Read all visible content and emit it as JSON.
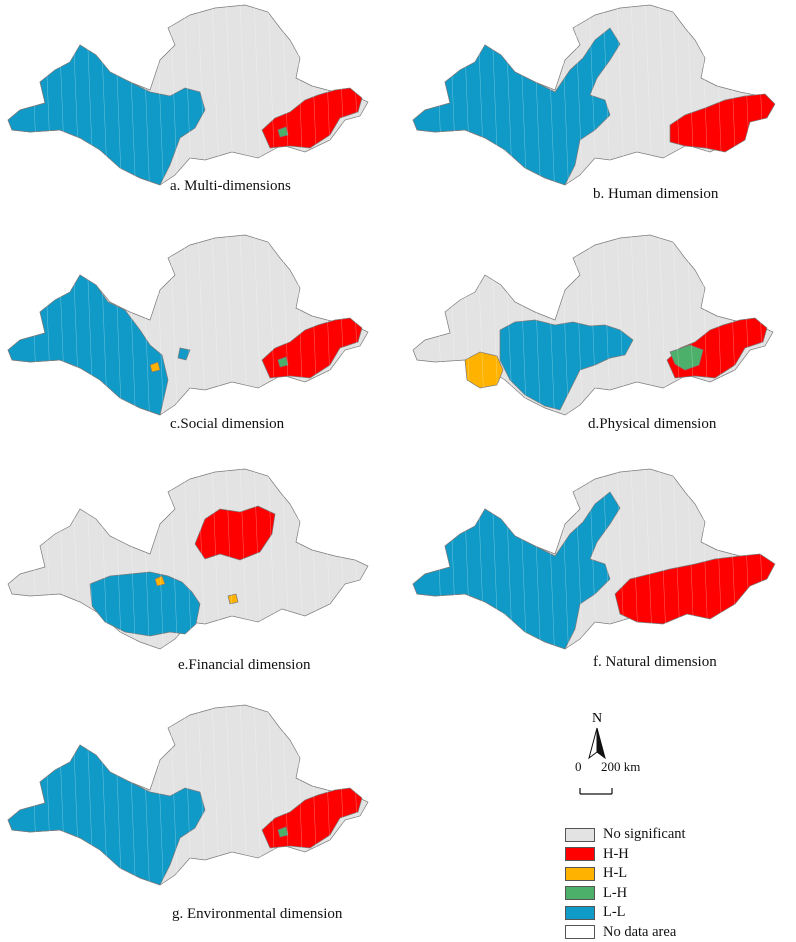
{
  "colors": {
    "no_significant": "#e3e3e3",
    "hh": "#ff0000",
    "hl": "#ffb300",
    "lh": "#4caf6a",
    "ll": "#0f9ac8",
    "no_data": "#ffffff",
    "outline": "#7a7a7a"
  },
  "panels": [
    {
      "caption": "a. Multi-dimensions",
      "ll": "ll_full",
      "hh": "hh_small",
      "lh": "lh_dot",
      "hl": ""
    },
    {
      "caption": "b. Human dimension",
      "ll": "ll_full_plus",
      "hh": "hh_medium",
      "lh": "",
      "hl": ""
    },
    {
      "caption": "c.Social dimension",
      "ll": "ll_partial",
      "hh": "hh_small",
      "lh": "lh_dot",
      "hl": "hl_dot"
    },
    {
      "caption": "d.Physical dimension",
      "ll": "ll_center",
      "hh": "hh_small",
      "lh": "lh_patch",
      "hl": "hl_west"
    },
    {
      "caption": "e.Financial dimension",
      "ll": "ll_south",
      "hh": "hh_center",
      "lh": "",
      "hl": "hl_dots2"
    },
    {
      "caption": "f. Natural dimension",
      "ll": "ll_full_plus",
      "hh": "hh_large",
      "lh": "",
      "hl": ""
    },
    {
      "caption": "g. Environmental dimension",
      "ll": "ll_full",
      "hh": "hh_small",
      "lh": "lh_dot",
      "hl": ""
    }
  ],
  "legend": [
    {
      "label": "No significant",
      "color_key": "no_significant"
    },
    {
      "label": "H-H",
      "color_key": "hh"
    },
    {
      "label": "H-L",
      "color_key": "hl"
    },
    {
      "label": "L-H",
      "color_key": "lh"
    },
    {
      "label": "L-L",
      "color_key": "ll"
    },
    {
      "label": "No data area",
      "color_key": "no_data"
    }
  ],
  "north_arrow": {
    "label": "N"
  },
  "scale_bar": {
    "start": "0",
    "end": "200 km"
  }
}
